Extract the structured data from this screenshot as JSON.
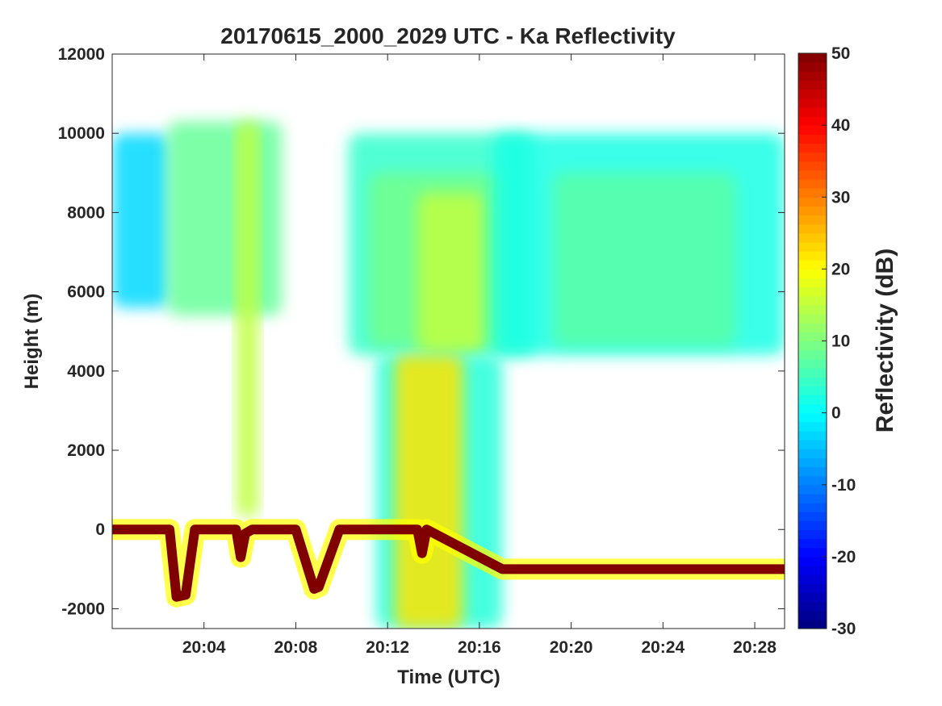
{
  "chart_data": {
    "type": "heatmap",
    "title": "20170615_2000_2029 UTC - Ka Reflectivity",
    "xlabel": "Time (UTC)",
    "ylabel": "Height (m)",
    "x_ticks": [
      "20:04",
      "20:08",
      "20:12",
      "20:16",
      "20:20",
      "20:24",
      "20:28"
    ],
    "x_tick_minutes": [
      4,
      8,
      12,
      16,
      20,
      24,
      28
    ],
    "xlim_minutes": [
      0,
      29.3
    ],
    "y_ticks": [
      -2000,
      0,
      2000,
      4000,
      6000,
      8000,
      10000,
      12000
    ],
    "ylim": [
      -2500,
      12000
    ],
    "colorbar": {
      "label": "Reflectivity (dB)",
      "ticks": [
        -30,
        -20,
        -10,
        0,
        10,
        20,
        30,
        40,
        50
      ],
      "range": [
        -30,
        50
      ],
      "colormap": "jet",
      "levels": 64
    },
    "grid": false,
    "echoes": [
      {
        "x": [
          0.0,
          2.5
        ],
        "y": [
          5600,
          10000
        ],
        "dbz": -3
      },
      {
        "x": [
          2.4,
          7.4
        ],
        "y": [
          5400,
          10300
        ],
        "dbz": 8
      },
      {
        "x": [
          5.4,
          6.4
        ],
        "y": [
          300,
          10300
        ],
        "dbz": 15
      },
      {
        "x": [
          10.3,
          18.4
        ],
        "y": [
          4400,
          10000
        ],
        "dbz": 4
      },
      {
        "x": [
          11.2,
          17.2
        ],
        "y": [
          4600,
          9000
        ],
        "dbz": 9
      },
      {
        "x": [
          13.3,
          16.2
        ],
        "y": [
          4400,
          8500
        ],
        "dbz": 15
      },
      {
        "x": [
          11.5,
          17.0
        ],
        "y": [
          -2500,
          4400
        ],
        "dbz": 3
      },
      {
        "x": [
          12.3,
          15.3
        ],
        "y": [
          -2500,
          4400
        ],
        "dbz": 22
      },
      {
        "x": [
          16.6,
          29.3
        ],
        "y": [
          4400,
          10000
        ],
        "dbz": 2
      },
      {
        "x": [
          19.2,
          27.2
        ],
        "y": [
          4600,
          9000
        ],
        "dbz": 7
      }
    ],
    "surface_return": {
      "dbz": 50,
      "minutes": [
        0,
        2.5,
        2.8,
        3.2,
        3.6,
        5.4,
        5.6,
        5.8,
        6.1,
        8.0,
        8.8,
        9.0,
        9.9,
        10.1,
        13.3,
        13.5,
        13.7,
        17.0,
        29.3
      ],
      "height_m": [
        0,
        0,
        -1700,
        -1650,
        0,
        0,
        -700,
        -100,
        0,
        0,
        -1500,
        -1450,
        0,
        0,
        0,
        -600,
        0,
        -1000,
        -1000
      ]
    }
  }
}
